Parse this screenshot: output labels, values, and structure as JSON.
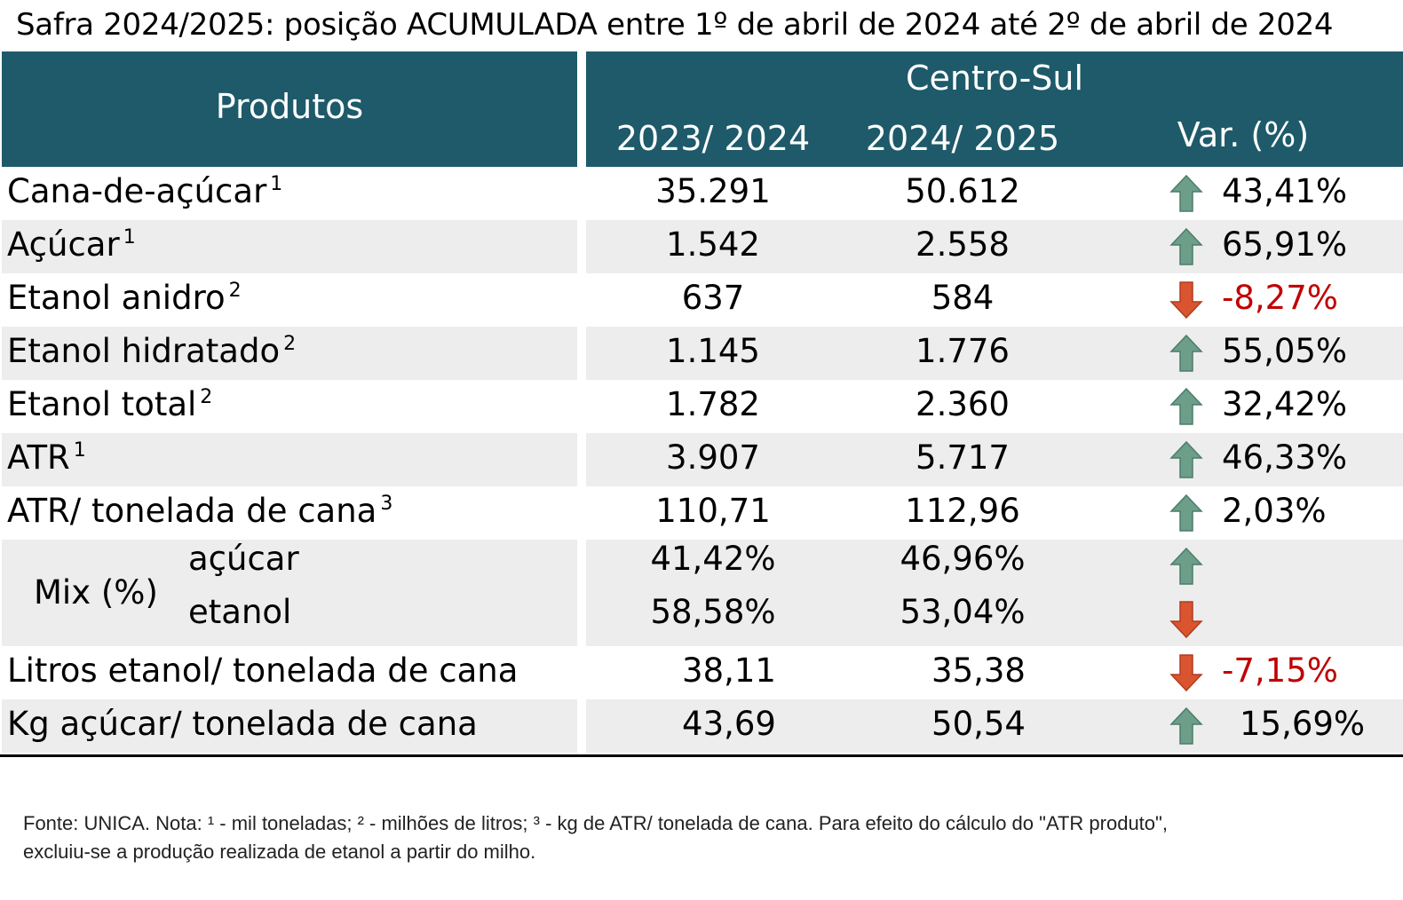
{
  "chart_data": {
    "type": "table",
    "title": "Safra 2024/2025: posição ACUMULADA entre 1º de abril de 2024 até 2º de abril de 2024",
    "header": {
      "products_label": "Produtos",
      "region": "Centro-Sul",
      "columns": [
        "2023/ 2024",
        "2024/ 2025",
        "Var. (%)"
      ]
    },
    "rows": [
      {
        "label": "Cana-de-açúcar",
        "note": "1",
        "v2023": "35.291",
        "v2024": "50.612",
        "trend": "up",
        "var": "43,41%"
      },
      {
        "label": "Açúcar",
        "note": "1",
        "v2023": "1.542",
        "v2024": "2.558",
        "trend": "up",
        "var": "65,91%"
      },
      {
        "label": "Etanol anidro",
        "note": "2",
        "v2023": "637",
        "v2024": "584",
        "trend": "down",
        "var": "-8,27%"
      },
      {
        "label": "Etanol hidratado",
        "note": "2",
        "v2023": "1.145",
        "v2024": "1.776",
        "trend": "up",
        "var": "55,05%"
      },
      {
        "label": "Etanol total",
        "note": "2",
        "v2023": "1.782",
        "v2024": "2.360",
        "trend": "up",
        "var": "32,42%"
      },
      {
        "label": "ATR",
        "note": "1",
        "v2023": "3.907",
        "v2024": "5.717",
        "trend": "up",
        "var": "46,33%"
      },
      {
        "label": "ATR/ tonelada de cana",
        "note": "3",
        "v2023": "110,71",
        "v2024": "112,96",
        "trend": "up",
        "var": "2,03%"
      },
      {
        "label": "açúcar",
        "group": "Mix (%)",
        "v2023": "41,42%",
        "v2024": "46,96%",
        "trend": "up",
        "var": ""
      },
      {
        "label": "etanol",
        "group": "Mix (%)",
        "v2023": "58,58%",
        "v2024": "53,04%",
        "trend": "down",
        "var": ""
      },
      {
        "label": "Litros etanol/ tonelada de cana",
        "note": "",
        "v2023": "38,11",
        "v2024": "35,38",
        "trend": "down",
        "var": "-7,15%"
      },
      {
        "label": "Kg açúcar/ tonelada de cana",
        "note": "",
        "v2023": "43,69",
        "v2024": "50,54",
        "trend": "up",
        "var": "15,69%"
      }
    ],
    "colors": {
      "header_bg": "#1e5a6a",
      "up_arrow": "#6c9e8a",
      "down_arrow": "#d9542f",
      "negative_text": "#c00000",
      "stripe": "#ededed"
    }
  },
  "footnote": {
    "line1": "Fonte: UNICA. Nota: ¹ - mil toneladas; ² - milhões de litros; ³ - kg de ATR/ tonelada de cana. Para efeito do cálculo do \"ATR produto\",",
    "line2": "excluiu-se a produção realizada de etanol a partir do milho."
  }
}
